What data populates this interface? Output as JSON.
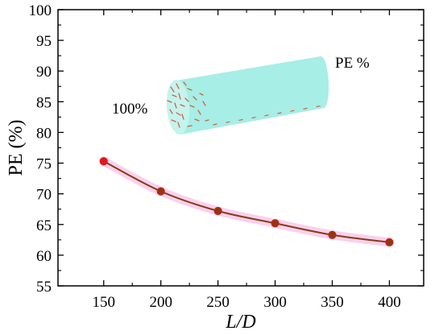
{
  "chart_data": {
    "type": "line",
    "title": "",
    "xlabel": "L/D",
    "ylabel": "PE (%)",
    "xlim": [
      110,
      430
    ],
    "ylim": [
      55,
      100
    ],
    "xticks": [
      150,
      200,
      250,
      300,
      350,
      400
    ],
    "yticks": [
      55,
      60,
      65,
      70,
      75,
      80,
      85,
      90,
      95,
      100
    ],
    "grid": false,
    "series": [
      {
        "x": [
          150,
          200,
          250,
          300,
          350,
          400
        ],
        "values": [
          75.3,
          70.4,
          67.2,
          65.2,
          63.3,
          62.1
        ],
        "color": "#8B3A0F",
        "marker_color": "#E0191E",
        "band_color": "#F5C2E8"
      }
    ],
    "annotations": [
      {
        "text": "100%"
      },
      {
        "text": "PE %"
      }
    ],
    "inset_colors": {
      "body": "#A6EEE6",
      "face": "#C4F4EE",
      "fibers": "#D5603A"
    }
  }
}
